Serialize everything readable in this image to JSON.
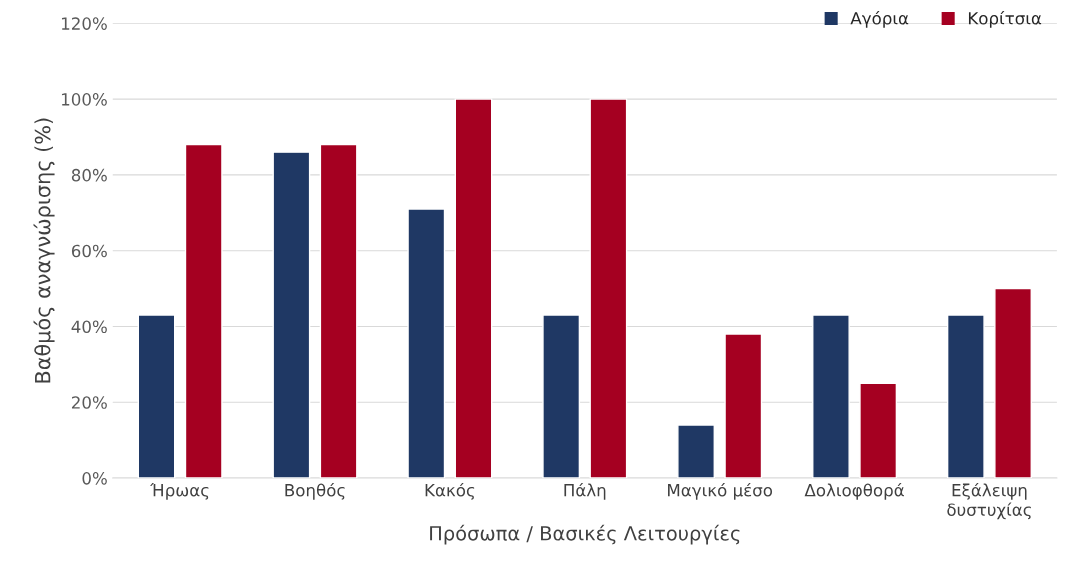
{
  "chart_data": {
    "type": "bar",
    "xlabel": "Πρόσωπα / Βασικές Λειτουργίες",
    "ylabel": "Βαθμός αναγνώρισης (%)",
    "categories": [
      "Ήρωας",
      "Βοηθός",
      "Κακός",
      "Πάλη",
      "Μαγικό μέσο",
      "Δολιοφθορά",
      "Εξάλειψη\nδυστυχίας"
    ],
    "series": [
      {
        "name": "Αγόρια",
        "color": "#1f3864",
        "values": [
          43,
          86,
          71,
          43,
          14,
          43,
          43
        ]
      },
      {
        "name": "Κορίτσια",
        "color": "#a50021",
        "values": [
          88,
          88,
          100,
          100,
          38,
          25,
          50
        ]
      }
    ],
    "ylim": [
      0,
      120
    ],
    "yticks": [
      {
        "value": 0,
        "label": "0%"
      },
      {
        "value": 20,
        "label": "20%"
      },
      {
        "value": 40,
        "label": "40%"
      },
      {
        "value": 60,
        "label": "60%"
      },
      {
        "value": 80,
        "label": "80%"
      },
      {
        "value": 100,
        "label": "100%"
      },
      {
        "value": 120,
        "label": "120%"
      }
    ],
    "grid": "y",
    "legend": "top right"
  }
}
